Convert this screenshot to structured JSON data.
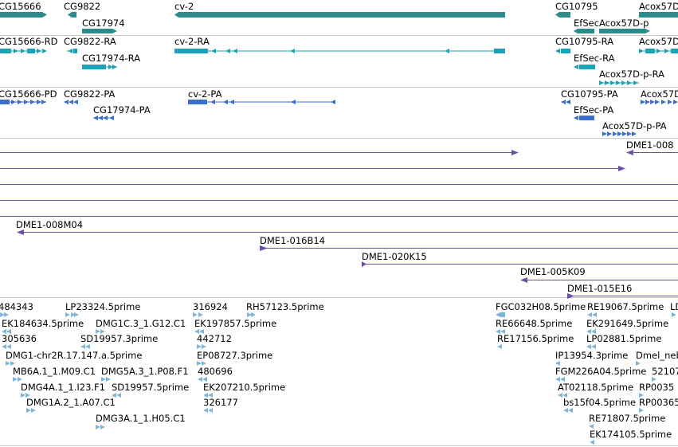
{
  "colors": {
    "gene": "#2e8b8b",
    "mrna": "#1aa3b8",
    "protein": "#3a6fd0",
    "clone": "#6b4fa8",
    "est": "#7eb6da",
    "separator": "#c8c8c8",
    "text": "#000000"
  },
  "genes": [
    {
      "label": "CG15666"
    },
    {
      "label": "CG9822"
    },
    {
      "label": "CG17974"
    },
    {
      "label": "cv-2"
    },
    {
      "label": "CG10795"
    },
    {
      "label": "EfSec"
    },
    {
      "label": "Acox57D-p"
    },
    {
      "label": "Acox57D"
    }
  ],
  "transcripts": [
    {
      "label": "CG15666-RD"
    },
    {
      "label": "CG9822-RA"
    },
    {
      "label": "CG17974-RA"
    },
    {
      "label": "cv-2-RA"
    },
    {
      "label": "CG10795-RA"
    },
    {
      "label": "EfSec-RA"
    },
    {
      "label": "Acox57D-p-RA"
    },
    {
      "label": "Acox57D"
    }
  ],
  "proteins": [
    {
      "label": "CG15666-PD"
    },
    {
      "label": "CG9822-PA"
    },
    {
      "label": "CG17974-PA"
    },
    {
      "label": "cv-2-PA"
    },
    {
      "label": "CG10795-PA"
    },
    {
      "label": "EfSec-PA"
    },
    {
      "label": "Acox57D-p-PA"
    },
    {
      "label": "Acox57D"
    }
  ],
  "clones": [
    {
      "label": "DME1-008"
    },
    {
      "label": "DME1-008M04"
    },
    {
      "label": "DME1-016B14"
    },
    {
      "label": "DME1-020K15"
    },
    {
      "label": "DME1-005K09"
    },
    {
      "label": "DME1-015E16"
    }
  ],
  "ests": [
    {
      "label": "484343"
    },
    {
      "label": "LP23324.5prime"
    },
    {
      "label": "316924"
    },
    {
      "label": "RH57123.5prime"
    },
    {
      "label": "FGC032H08.5prime"
    },
    {
      "label": "RE19067.5prime"
    },
    {
      "label": "LD"
    },
    {
      "label": "EK184634.5prime"
    },
    {
      "label": "DMG1C.3_1.G12.C1"
    },
    {
      "label": "EK197857.5prime"
    },
    {
      "label": "RE66648.5prime"
    },
    {
      "label": "EK291649.5prime"
    },
    {
      "label": "305636"
    },
    {
      "label": "SD19957.3prime"
    },
    {
      "label": "442712"
    },
    {
      "label": "RE17156.5prime"
    },
    {
      "label": "LP02881.5prime"
    },
    {
      "label": "DMG1-chr2R.17.147.a.5prime"
    },
    {
      "label": "EP08727.3prime"
    },
    {
      "label": "IP13954.3prime"
    },
    {
      "label": "Dmel_neb"
    },
    {
      "label": "MB6A.1_1.M09.C1"
    },
    {
      "label": "DMG5A.3_1.P08.F1"
    },
    {
      "label": "480696"
    },
    {
      "label": "FGM226A04.5prime"
    },
    {
      "label": "52107"
    },
    {
      "label": "DMG4A.1_1.I23.F1"
    },
    {
      "label": "SD19957.5prime"
    },
    {
      "label": "EK207210.5prime"
    },
    {
      "label": "AT02118.5prime"
    },
    {
      "label": "RP0035"
    },
    {
      "label": "DMG1A.2_1.A07.C1"
    },
    {
      "label": "326177"
    },
    {
      "label": "bs15f04.5prime"
    },
    {
      "label": "RP00365"
    },
    {
      "label": "DMG3A.1_1.H05.C1"
    },
    {
      "label": "RE71807.5prime"
    },
    {
      "label": "EK174105.5prime"
    }
  ]
}
